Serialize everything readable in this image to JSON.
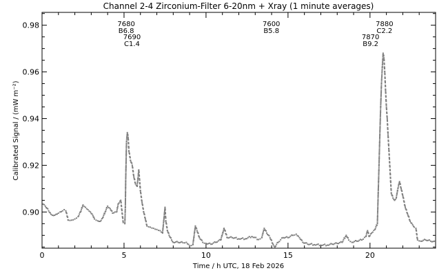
{
  "chart_data": {
    "type": "scatter",
    "title": "Channel 2-4   Zirconium-Filter   6-20nm + Xray   (1 minute averages)",
    "xlabel": "Time / h UTC, 18 Feb 2026",
    "ylabel": "Calibrated Signal / (mW m⁻²)",
    "xlim": [
      0,
      24
    ],
    "ylim": [
      0.8845,
      0.9855
    ],
    "xticks": [
      0,
      5,
      10,
      15,
      20
    ],
    "yticks": [
      0.9,
      0.92,
      0.94,
      0.96,
      0.98
    ],
    "ytick_labels": [
      "0.90",
      "0.92",
      "0.94",
      "0.96",
      "0.98"
    ],
    "grid": false,
    "marker_color": "#7f7f7f",
    "series": [
      {
        "values": [
          [
            0.0,
            0.904
          ],
          [
            0.2,
            0.9025
          ],
          [
            0.4,
            0.9005
          ],
          [
            0.55,
            0.899
          ],
          [
            0.7,
            0.8985
          ],
          [
            0.85,
            0.899
          ],
          [
            1.0,
            0.8995
          ],
          [
            1.1,
            0.9
          ],
          [
            1.25,
            0.9005
          ],
          [
            1.35,
            0.901
          ],
          [
            1.45,
            0.9005
          ],
          [
            1.6,
            0.8965
          ],
          [
            1.8,
            0.8965
          ],
          [
            2.0,
            0.897
          ],
          [
            2.2,
            0.898
          ],
          [
            2.35,
            0.9
          ],
          [
            2.5,
            0.903
          ],
          [
            2.65,
            0.902
          ],
          [
            2.8,
            0.901
          ],
          [
            2.95,
            0.9
          ],
          [
            3.1,
            0.8985
          ],
          [
            3.2,
            0.897
          ],
          [
            3.4,
            0.8962
          ],
          [
            3.55,
            0.896
          ],
          [
            3.7,
            0.8975
          ],
          [
            3.85,
            0.9
          ],
          [
            4.0,
            0.9025
          ],
          [
            4.15,
            0.9015
          ],
          [
            4.3,
            0.8995
          ],
          [
            4.45,
            0.9
          ],
          [
            4.55,
            0.9
          ],
          [
            4.65,
            0.9035
          ],
          [
            4.8,
            0.905
          ],
          [
            4.95,
            0.8955
          ],
          [
            5.05,
            0.895
          ],
          [
            5.08,
            0.902
          ],
          [
            5.1,
            0.913
          ],
          [
            5.15,
            0.93
          ],
          [
            5.2,
            0.934
          ],
          [
            5.25,
            0.932
          ],
          [
            5.3,
            0.926
          ],
          [
            5.4,
            0.922
          ],
          [
            5.5,
            0.92
          ],
          [
            5.6,
            0.915
          ],
          [
            5.7,
            0.912
          ],
          [
            5.8,
            0.911
          ],
          [
            5.9,
            0.918
          ],
          [
            6.0,
            0.909
          ],
          [
            6.1,
            0.904
          ],
          [
            6.2,
            0.9
          ],
          [
            6.3,
            0.897
          ],
          [
            6.4,
            0.894
          ],
          [
            6.6,
            0.8935
          ],
          [
            6.8,
            0.893
          ],
          [
            7.0,
            0.8925
          ],
          [
            7.2,
            0.892
          ],
          [
            7.35,
            0.891
          ],
          [
            7.5,
            0.902
          ],
          [
            7.55,
            0.896
          ],
          [
            7.65,
            0.892
          ],
          [
            7.75,
            0.89
          ],
          [
            7.9,
            0.888
          ],
          [
            8.0,
            0.887
          ],
          [
            8.3,
            0.887
          ],
          [
            8.6,
            0.8868
          ],
          [
            8.8,
            0.887
          ],
          [
            9.0,
            0.8855
          ],
          [
            9.2,
            0.886
          ],
          [
            9.35,
            0.894
          ],
          [
            9.45,
            0.892
          ],
          [
            9.6,
            0.889
          ],
          [
            9.8,
            0.887
          ],
          [
            10.0,
            0.8865
          ],
          [
            10.3,
            0.8862
          ],
          [
            10.6,
            0.887
          ],
          [
            10.9,
            0.888
          ],
          [
            11.1,
            0.893
          ],
          [
            11.3,
            0.889
          ],
          [
            11.6,
            0.889
          ],
          [
            12.0,
            0.8885
          ],
          [
            12.4,
            0.8885
          ],
          [
            12.8,
            0.8895
          ],
          [
            13.2,
            0.8882
          ],
          [
            13.4,
            0.889
          ],
          [
            13.55,
            0.893
          ],
          [
            13.7,
            0.891
          ],
          [
            13.9,
            0.889
          ],
          [
            14.1,
            0.886
          ],
          [
            14.2,
            0.885
          ],
          [
            14.4,
            0.887
          ],
          [
            14.7,
            0.889
          ],
          [
            15.0,
            0.889
          ],
          [
            15.3,
            0.89
          ],
          [
            15.5,
            0.8905
          ],
          [
            15.7,
            0.889
          ],
          [
            15.9,
            0.887
          ],
          [
            16.2,
            0.8862
          ],
          [
            16.6,
            0.886
          ],
          [
            17.0,
            0.8858
          ],
          [
            17.4,
            0.8858
          ],
          [
            17.7,
            0.8862
          ],
          [
            18.0,
            0.8865
          ],
          [
            18.3,
            0.887
          ],
          [
            18.55,
            0.89
          ],
          [
            18.7,
            0.888
          ],
          [
            18.9,
            0.887
          ],
          [
            19.2,
            0.8875
          ],
          [
            19.5,
            0.888
          ],
          [
            19.75,
            0.8895
          ],
          [
            19.85,
            0.892
          ],
          [
            19.95,
            0.8895
          ],
          [
            20.1,
            0.891
          ],
          [
            20.3,
            0.8925
          ],
          [
            20.45,
            0.895
          ],
          [
            20.5,
            0.908
          ],
          [
            20.55,
            0.92
          ],
          [
            20.6,
            0.933
          ],
          [
            20.65,
            0.945
          ],
          [
            20.7,
            0.955
          ],
          [
            20.75,
            0.962
          ],
          [
            20.8,
            0.968
          ],
          [
            20.85,
            0.966
          ],
          [
            20.9,
            0.96
          ],
          [
            20.95,
            0.952
          ],
          [
            21.0,
            0.945
          ],
          [
            21.05,
            0.94
          ],
          [
            21.1,
            0.933
          ],
          [
            21.15,
            0.927
          ],
          [
            21.3,
            0.908
          ],
          [
            21.4,
            0.906
          ],
          [
            21.5,
            0.905
          ],
          [
            21.6,
            0.906
          ],
          [
            21.7,
            0.91
          ],
          [
            21.8,
            0.913
          ],
          [
            21.9,
            0.91
          ],
          [
            22.0,
            0.907
          ],
          [
            22.15,
            0.902
          ],
          [
            22.3,
            0.899
          ],
          [
            22.45,
            0.896
          ],
          [
            22.6,
            0.8945
          ],
          [
            22.7,
            0.8935
          ],
          [
            22.8,
            0.893
          ],
          [
            22.9,
            0.888
          ],
          [
            23.1,
            0.8875
          ],
          [
            23.4,
            0.888
          ],
          [
            23.7,
            0.8875
          ],
          [
            24.0,
            0.887
          ]
        ]
      }
    ],
    "annotations": [
      {
        "lines": [
          "7680",
          "B6.8"
        ],
        "x": 5.05,
        "level": "upper"
      },
      {
        "lines": [
          "7690",
          "C1.4"
        ],
        "x": 5.4,
        "level": "lower"
      },
      {
        "lines": [
          "7600",
          "B5.8"
        ],
        "x": 13.9,
        "level": "upper"
      },
      {
        "lines": [
          "7870",
          "B9.2"
        ],
        "x": 19.95,
        "level": "lower"
      },
      {
        "lines": [
          "7880",
          "C2.2"
        ],
        "x": 20.8,
        "level": "upper"
      }
    ]
  }
}
